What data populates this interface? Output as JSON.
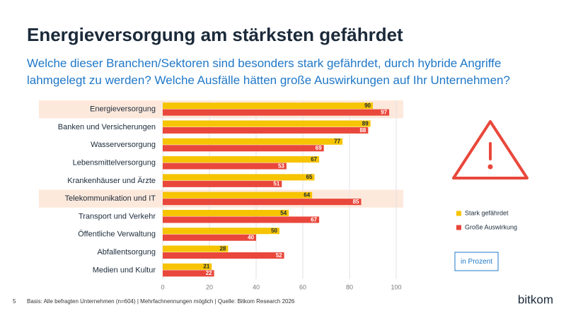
{
  "chart_data": {
    "type": "hbar",
    "title": "Energieversorgung am stärksten gefährdet",
    "subtitle": "Welche dieser Branchen/Sektoren sind besonders stark gefährdet, durch hybride Angriffe lahmgelegt zu werden? Welche Ausfälle hätten große Auswirkungen auf Ihr Unternehmen?",
    "categories": [
      "Energieversorgung",
      "Banken und Versicherungen",
      "Wasserversorgung",
      "Lebensmittelversorgung",
      "Krankenhäuser und Ärzte",
      "Telekommunikation und IT",
      "Transport und Verkehr",
      "Öffentliche Verwaltung",
      "Abfallentsorgung",
      "Medien und Kultur"
    ],
    "series": [
      {
        "name": "Stark gefährdet",
        "color": "#f6c400",
        "values": [
          90,
          89,
          77,
          67,
          65,
          64,
          54,
          50,
          28,
          21
        ]
      },
      {
        "name": "Große Auswirkung",
        "color": "#e9473b",
        "values": [
          97,
          88,
          69,
          53,
          51,
          85,
          67,
          40,
          52,
          22
        ]
      }
    ],
    "highlight_rows": [
      0,
      5
    ],
    "xlim": [
      0,
      100
    ],
    "xticks": [
      0,
      20,
      40,
      60,
      80,
      100
    ],
    "grid": true,
    "legend": "right",
    "unit_note": "in Prozent",
    "note": "Basis: Alle befragten Unternehmen (n=604) | Mehrfachnennungen möglich | Quelle: Bitkom Research 2026",
    "page_number": 5,
    "logo": "bitkom"
  }
}
